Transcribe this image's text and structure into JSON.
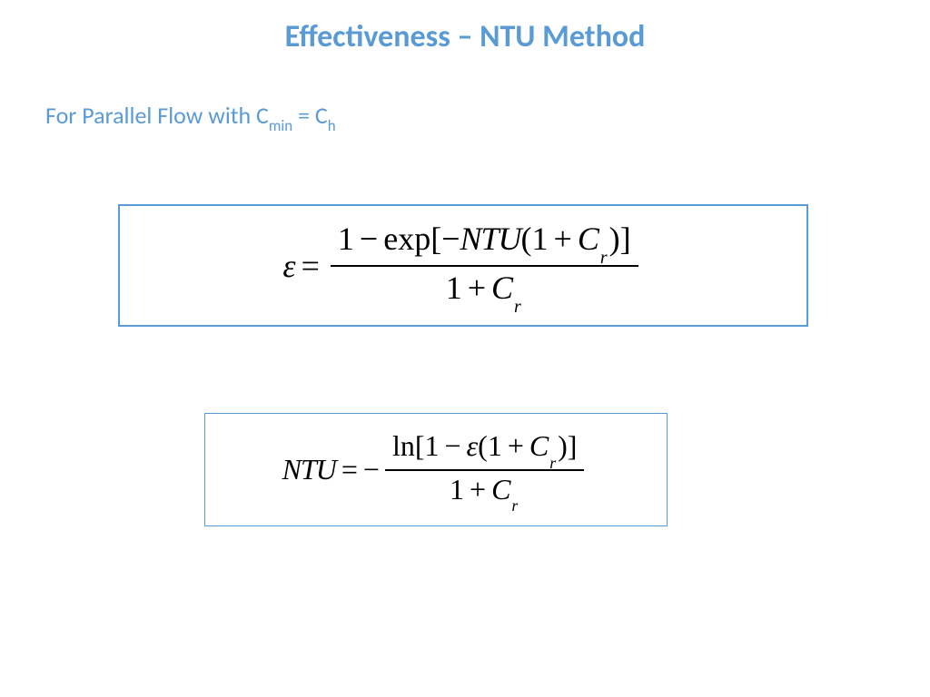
{
  "colors": {
    "accent": "#5b9bd5",
    "text_black": "#000000",
    "background": "#ffffff"
  },
  "title": {
    "text": "Effectiveness – NTU Method",
    "fontsize": 34,
    "color": "#5b9bd5",
    "weight": "bold"
  },
  "subtitle": {
    "prefix": "For Parallel Flow with C",
    "sub1": "min",
    "mid": " = C",
    "sub2": "h",
    "fontsize": 26,
    "color": "#5b9bd5"
  },
  "equation1": {
    "lhs_symbol": "ε",
    "equals": "=",
    "numerator": {
      "lead": "1",
      "minus": "−",
      "func": "exp",
      "open": "[",
      "neg": "−",
      "var": "NTU",
      "paren_open": "(1",
      "plus": "+",
      "c": "C",
      "c_sub": "r",
      "paren_close": ")",
      "close": "]"
    },
    "denominator": {
      "lead": "1",
      "plus": "+",
      "c": "C",
      "c_sub": "r"
    },
    "fontsize": 36,
    "border_color": "#5b9bd5",
    "border_width": 2
  },
  "equation2": {
    "lhs_var": "NTU",
    "equals": "=",
    "neg": "−",
    "numerator": {
      "func": "ln",
      "open": "[",
      "lead": "1",
      "minus": "−",
      "eps": "ε",
      "paren_open": "(1",
      "plus": "+",
      "c": "C",
      "c_sub": "r",
      "paren_close": ")",
      "close": "]"
    },
    "denominator": {
      "lead": "1",
      "plus": "+",
      "c": "C",
      "c_sub": "r"
    },
    "fontsize": 32,
    "border_color": "#5b9bd5",
    "border_width": 1
  }
}
